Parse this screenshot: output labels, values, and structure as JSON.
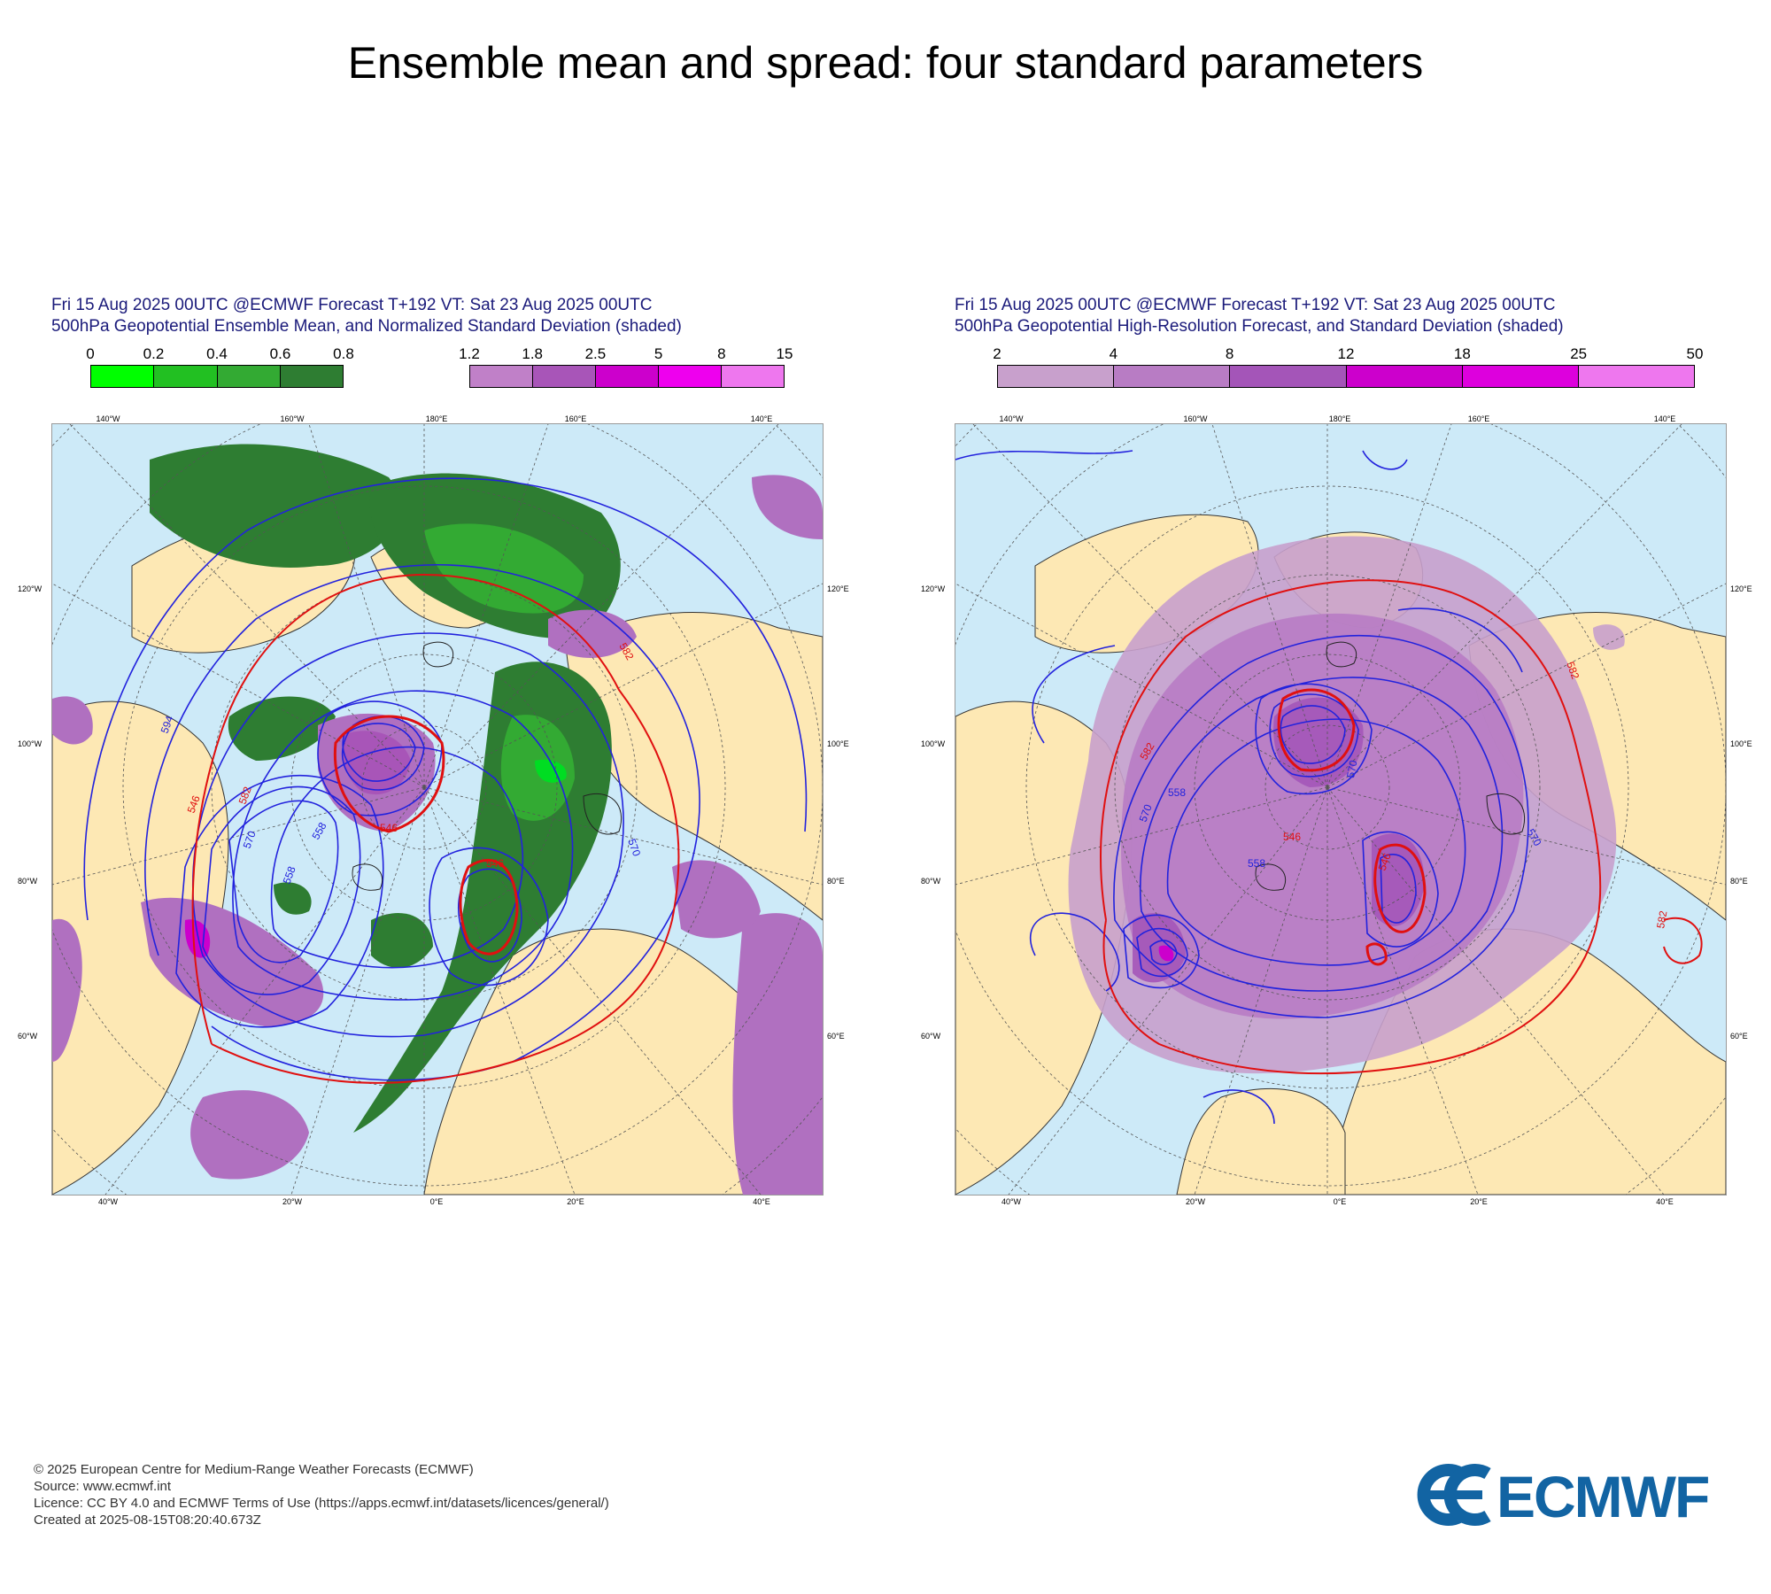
{
  "page": {
    "title": "Ensemble mean and spread: four standard parameters"
  },
  "panels": [
    {
      "header_line1": "Fri 15 Aug 2025 00UTC @ECMWF Forecast T+192 VT: Sat 23 Aug 2025 00UTC",
      "header_line2": "500hPa Geopotential Ensemble Mean, and Normalized Standard Deviation (shaded)",
      "colorbars": [
        {
          "ticks": [
            "0",
            "0.2",
            "0.4",
            "0.6",
            "0.8"
          ],
          "colors": [
            "#00ff00",
            "#22c022",
            "#33aa33",
            "#2e7d32"
          ]
        },
        {
          "ticks": [
            "1.2",
            "1.8",
            "2.5",
            "5",
            "8",
            "15"
          ],
          "colors": [
            "#c080c8",
            "#a855b8",
            "#cc00cc",
            "#ee00ee",
            "#ee77ee"
          ]
        }
      ],
      "contour_labels": [
        "594",
        "582",
        "570",
        "558",
        "546",
        "546",
        "570",
        "582",
        "546",
        "558"
      ],
      "lon_top": [
        "140°W",
        "160°W",
        "180°E",
        "160°E",
        "140°E"
      ],
      "lon_bottom": [
        "40°W",
        "20°W",
        "0°E",
        "20°E",
        "40°E"
      ],
      "lat_left": [
        "120°W",
        "100°W",
        "80°W",
        "60°W"
      ],
      "lat_right": [
        "120°E",
        "100°E",
        "80°E",
        "60°E"
      ]
    },
    {
      "header_line1": "Fri 15 Aug 2025 00UTC @ECMWF Forecast T+192 VT: Sat 23 Aug 2025 00UTC",
      "header_line2": "500hPa Geopotential High-Resolution Forecast, and Standard Deviation (shaded)",
      "colorbars": [
        {
          "ticks": [
            "2",
            "4",
            "8",
            "12",
            "18",
            "25",
            "50"
          ],
          "colors": [
            "#c8a0cc",
            "#b87cc4",
            "#a455b8",
            "#cc00cc",
            "#dd00dd",
            "#ee77ee"
          ]
        }
      ],
      "contour_labels": [
        "582",
        "582",
        "570",
        "558",
        "546",
        "570",
        "546",
        "558",
        "582",
        "570"
      ],
      "lon_top": [
        "140°W",
        "160°W",
        "180°E",
        "160°E",
        "140°E"
      ],
      "lon_bottom": [
        "40°W",
        "20°W",
        "0°E",
        "20°E",
        "40°E"
      ],
      "lat_left": [
        "120°W",
        "100°W",
        "80°W",
        "60°W"
      ],
      "lat_right": [
        "120°E",
        "100°E",
        "80°E",
        "60°E"
      ]
    }
  ],
  "footer": {
    "line1": "© 2025 European Centre for Medium-Range Weather Forecasts (ECMWF)",
    "line2": "Source: www.ecmwf.int",
    "line3": "Licence: CC BY 4.0 and ECMWF Terms of Use (https://apps.ecmwf.int/datasets/licences/general/)",
    "line4": "Created at 2025-08-15T08:20:40.673Z"
  },
  "logo": {
    "text": "ECMWF",
    "color": "#1264a3"
  },
  "colors": {
    "ocean": "#cdeaf8",
    "land": "#fde8b4",
    "contour_blue": "#2222dd",
    "contour_red": "#e01010"
  }
}
